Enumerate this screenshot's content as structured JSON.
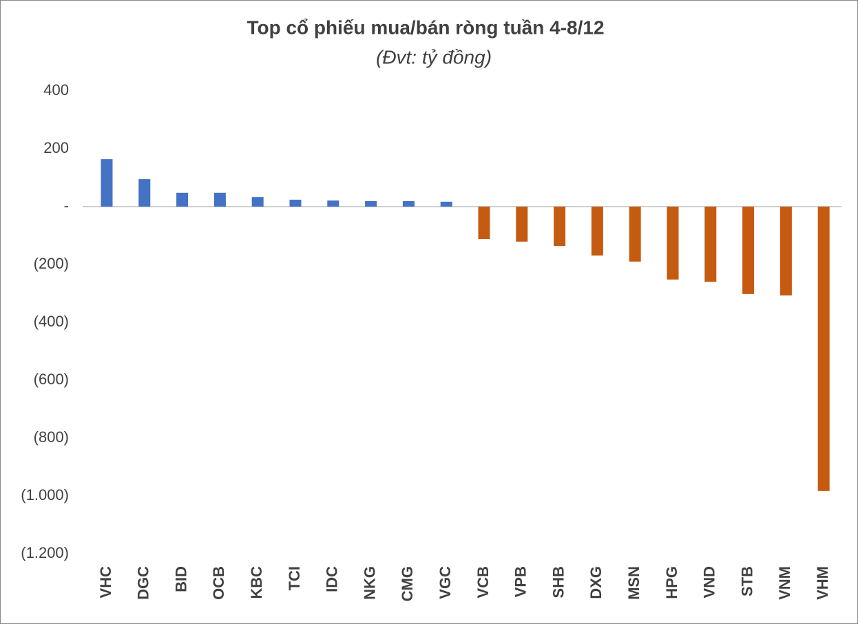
{
  "chart_data": {
    "type": "bar",
    "title": "Top cổ phiếu mua/bán ròng tuần 4-8/12",
    "subtitle": "(Đvt: tỷ đồng)",
    "categories": [
      "VHC",
      "DGC",
      "BID",
      "OCB",
      "KBC",
      "TCI",
      "IDC",
      "NKG",
      "CMG",
      "VGC",
      "VCB",
      "VPB",
      "SHB",
      "DXG",
      "MSN",
      "HPG",
      "VND",
      "STB",
      "VNM",
      "VHM"
    ],
    "values": [
      164,
      95,
      48,
      48,
      33,
      24,
      21,
      19,
      19,
      17,
      -112,
      -121,
      -136,
      -169,
      -190,
      -252,
      -260,
      -302,
      -307,
      -983
    ],
    "color": "#4472c4",
    "negative_color": "#c55a11",
    "ylim": [
      -1200,
      400
    ],
    "yticks": [
      400,
      200,
      {
        "value": 0,
        "label": "-"
      },
      {
        "value": -200,
        "label": "(200)"
      },
      {
        "value": -400,
        "label": "(400)"
      },
      {
        "value": -600,
        "label": "(600)"
      },
      {
        "value": -800,
        "label": "(800)"
      },
      {
        "value": -1000,
        "label": "(1.000)"
      },
      {
        "value": -1200,
        "label": "(1.200)"
      }
    ],
    "grid": false
  }
}
